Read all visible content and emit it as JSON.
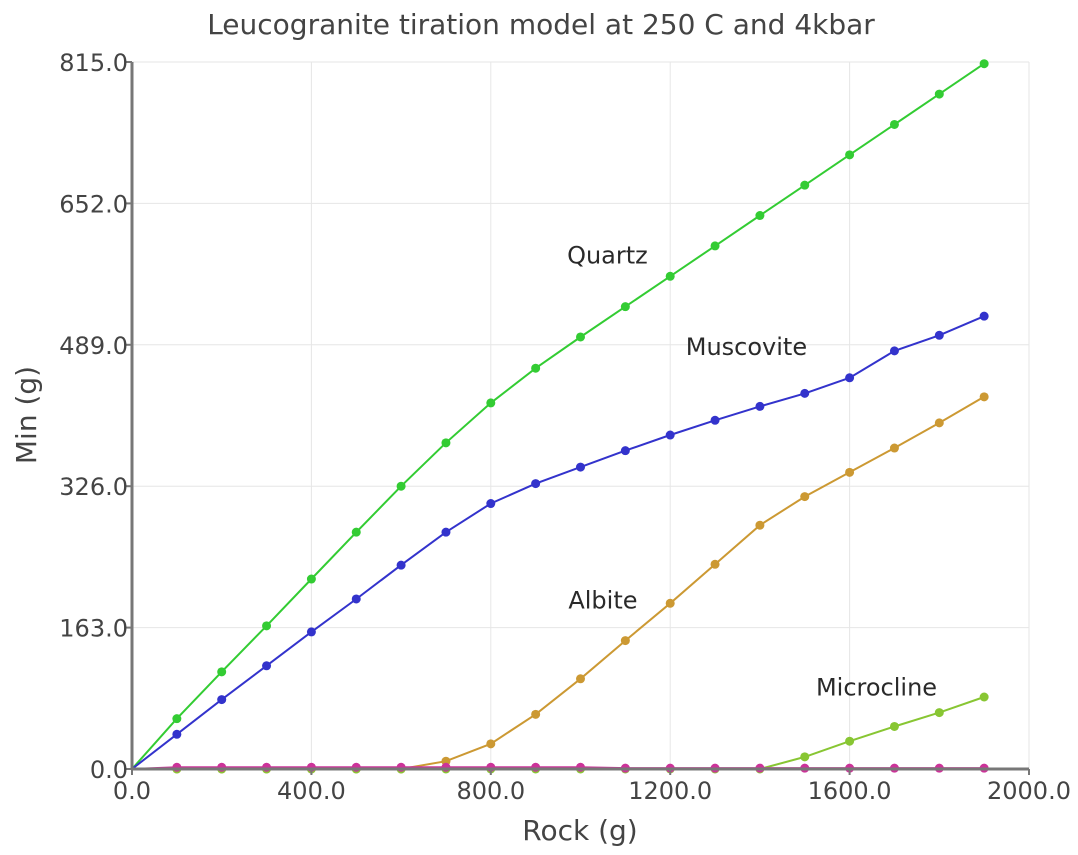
{
  "chart_data": {
    "type": "line",
    "title": "Leucogranite tiration model at 250 C and 4kbar",
    "xlabel": "Rock (g)",
    "ylabel": "Min (g)",
    "xlim": [
      0,
      2000
    ],
    "ylim": [
      0,
      815
    ],
    "x_ticks": [
      0,
      400,
      800,
      1200,
      1600,
      2000
    ],
    "x_tick_labels": [
      "0.0",
      "400.0",
      "800.0",
      "1200.0",
      "1600.0",
      "2000.0"
    ],
    "y_ticks": [
      0,
      163,
      326,
      489,
      652,
      815
    ],
    "y_tick_labels": [
      "0.0",
      "163.0",
      "326.0",
      "489.0",
      "652.0",
      "815.0"
    ],
    "grid": true,
    "legend": "inline labels",
    "x": [
      0,
      100,
      200,
      300,
      400,
      500,
      600,
      700,
      800,
      900,
      1000,
      1100,
      1200,
      1300,
      1400,
      1500,
      1600,
      1700,
      1800,
      1900
    ],
    "series": [
      {
        "name": "Quartz",
        "color": "#33cc33",
        "label_at": [
          1060,
          583
        ],
        "values": [
          0,
          58,
          112,
          165,
          219,
          273,
          326,
          376,
          422,
          462,
          498,
          533,
          568,
          603,
          638,
          673,
          708,
          743,
          778,
          813
        ]
      },
      {
        "name": "Muscovite",
        "color": "#3333cc",
        "label_at": [
          1370,
          477
        ],
        "values": [
          0,
          40,
          80,
          119,
          158,
          196,
          235,
          273,
          306,
          329,
          348,
          367,
          385,
          402,
          418,
          433,
          451,
          482,
          500,
          522
        ]
      },
      {
        "name": "Albite",
        "color": "#cc9933",
        "label_at": [
          1050,
          185
        ],
        "values": [
          0,
          0,
          0,
          0,
          0,
          0,
          0,
          9,
          29,
          63,
          104,
          148,
          191,
          236,
          281,
          314,
          342,
          370,
          399,
          429
        ]
      },
      {
        "name": "Microcline",
        "color": "#88c633",
        "label_at": [
          1660,
          85
        ],
        "values": [
          0,
          0,
          0,
          0,
          0,
          0,
          0,
          0,
          0,
          0,
          0,
          0,
          0,
          0,
          0,
          14,
          32,
          49,
          65,
          83
        ]
      },
      {
        "name": "",
        "color": "#cc3399",
        "values": [
          0,
          2,
          2,
          2,
          2,
          2,
          2,
          2,
          2,
          2,
          2,
          1,
          1,
          1,
          1,
          1,
          1,
          1,
          1,
          1
        ]
      }
    ]
  }
}
